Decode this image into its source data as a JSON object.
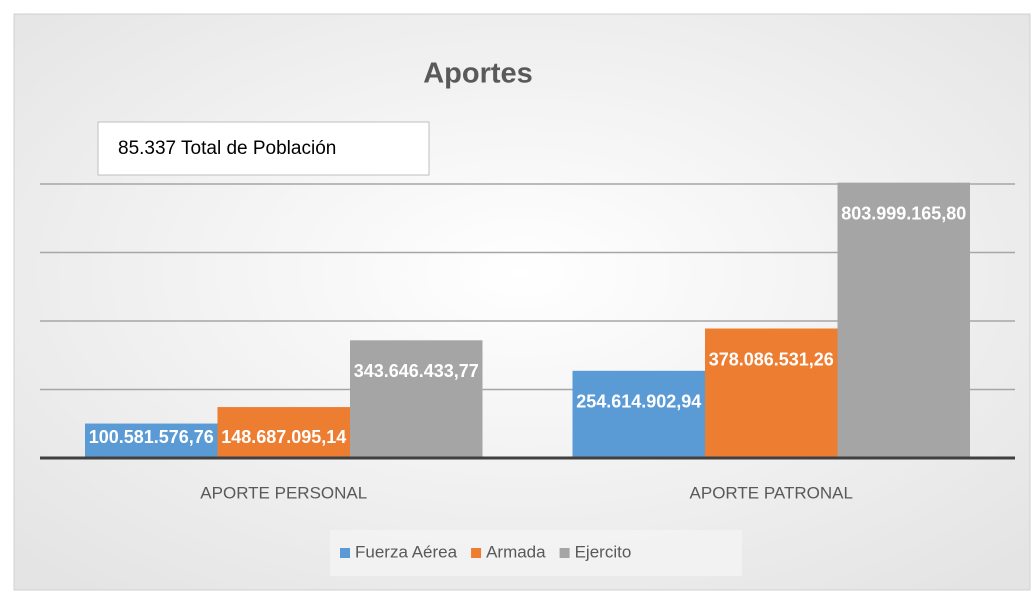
{
  "chart_data": {
    "type": "bar",
    "title": "Aportes",
    "annotation": "85.337 Total de Población",
    "categories": [
      "APORTE PERSONAL",
      "APORTE PATRONAL"
    ],
    "series": [
      {
        "name": "Fuerza Aérea",
        "color": "#5b9bd5",
        "values": [
          100581576.76,
          254614902.94
        ],
        "value_labels": [
          "100.581.576,76",
          "254.614.902,94"
        ]
      },
      {
        "name": "Armada",
        "color": "#ed7d31",
        "values": [
          148687095.14,
          378086531.26
        ],
        "value_labels": [
          "148.687.095,14",
          "378.086.531,26"
        ]
      },
      {
        "name": "Ejercito",
        "color": "#a5a5a5",
        "values": [
          343646433.77,
          803999165.8
        ],
        "value_labels": [
          "343.646.433,77",
          "803.999.165,80"
        ]
      }
    ],
    "ylim": [
      0,
      800000000
    ],
    "yticks": [
      0,
      200000000,
      400000000,
      600000000,
      800000000
    ],
    "grid": true,
    "legend": "bottom"
  }
}
